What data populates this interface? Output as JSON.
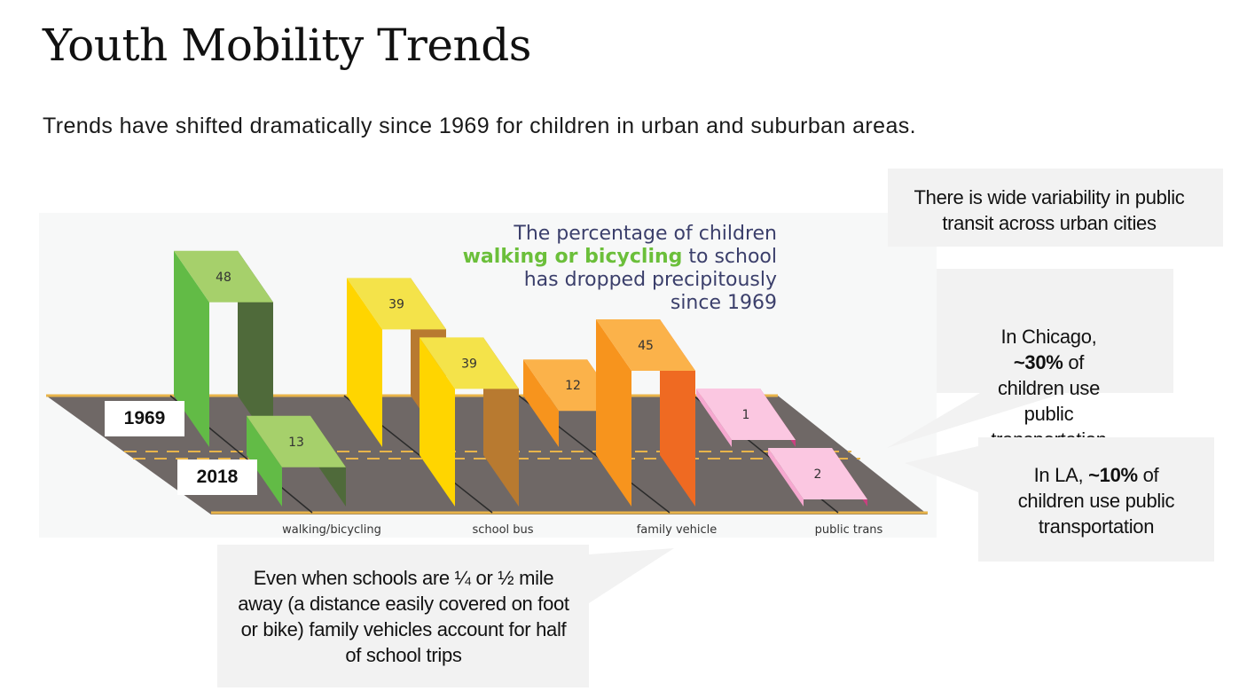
{
  "slide": {
    "title": "Youth Mobility Trends",
    "subtitle": "Trends have shifted dramatically since 1969 for children in urban and suburban areas."
  },
  "chart_data": {
    "type": "bar",
    "title_line1": "The percentage of children",
    "title_accent": "walking or bicycling",
    "title_line2_rest": " to school",
    "title_line3": "has dropped precipitously",
    "title_line4": "since 1969",
    "categories": [
      "walking/bicycling",
      "school bus",
      "family vehicle",
      "public trans"
    ],
    "series": [
      {
        "name": "1969",
        "values": [
          48,
          39,
          12,
          1
        ]
      },
      {
        "name": "2018",
        "values": [
          13,
          39,
          45,
          2
        ]
      }
    ],
    "series_labels": [
      "1969",
      "2018"
    ],
    "colors": {
      "walking": [
        "#62bb46",
        "#4f6a3a",
        "#a6d06b"
      ],
      "bus": [
        "#ffd500",
        "#b87a30",
        "#f4e34a"
      ],
      "family": [
        "#f7941d",
        "#ef6a22",
        "#fbb24a"
      ],
      "transit": [
        "#f6a8d0",
        "#c8407f",
        "#fbc7e1"
      ],
      "road": "#6f6866",
      "road_line": "#e8b44a"
    }
  },
  "callouts": {
    "variability": "There is wide variability in public   transit across urban cities",
    "chicago_prefix": "In Chicago,",
    "chicago_value": "~30%",
    "chicago_suffix1": " of",
    "chicago_suffix2": "children use",
    "chicago_suffix3": "public",
    "chicago_suffix4": "transportation",
    "la_prefix": "In LA, ",
    "la_value": "~10%",
    "la_suffix1": " of",
    "la_suffix2": "children use public",
    "la_suffix3": "transportation",
    "vehicles": "Even when schools are ¼ or ½ mile away (a distance easily covered on foot or bike) family vehicles account for half of school trips"
  }
}
